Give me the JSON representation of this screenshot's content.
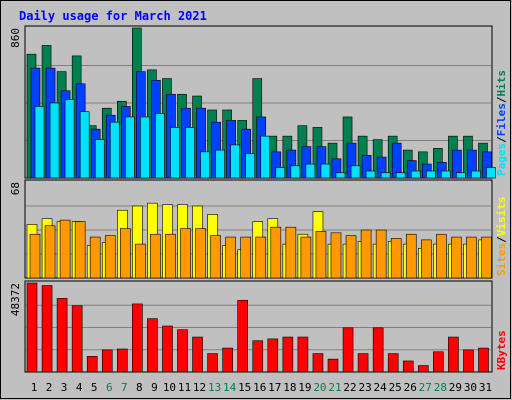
{
  "chart_data": {
    "type": "bar",
    "title": "Daily usage for March 2021",
    "colors": {
      "background": "#c0c0c0",
      "title": "#0000ff",
      "hits": "#007f4f",
      "files": "#0040ff",
      "pages": "#00e0ff",
      "visits": "#ffff00",
      "sites": "#ff9900",
      "kbytes": "#ff0000",
      "weekend": "#00804a",
      "weekday": "#000000"
    },
    "days": [
      1,
      2,
      3,
      4,
      5,
      6,
      7,
      8,
      9,
      10,
      11,
      12,
      13,
      14,
      15,
      16,
      17,
      18,
      19,
      20,
      21,
      22,
      23,
      24,
      25,
      26,
      27,
      28,
      29,
      30,
      31
    ],
    "weekend_days": [
      6,
      7,
      13,
      14,
      20,
      21,
      27,
      28
    ],
    "panels": [
      {
        "id": "hits-files-pages",
        "max_label": "860",
        "ymax": 860,
        "side_labels": [
          "Pages",
          "Files",
          "Hits"
        ],
        "series": [
          {
            "name": "Hits",
            "values": [
              710,
              760,
              610,
              700,
              300,
              400,
              440,
              860,
              620,
              570,
              480,
              470,
              390,
              390,
              330,
              570,
              240,
              240,
              300,
              290,
              200,
              350,
              240,
              220,
              240,
              160,
              150,
              170,
              240,
              240,
              200
            ]
          },
          {
            "name": "Files",
            "values": [
              630,
              630,
              500,
              540,
              280,
              360,
              410,
              610,
              560,
              480,
              400,
              400,
              320,
              330,
              280,
              350,
              150,
              160,
              180,
              180,
              110,
              200,
              130,
              120,
              200,
              100,
              80,
              90,
              160,
              160,
              150
            ]
          },
          {
            "name": "Pages",
            "values": [
              410,
              430,
              450,
              380,
              220,
              320,
              350,
              350,
              370,
              290,
              290,
              150,
              160,
              190,
              140,
              240,
              60,
              70,
              80,
              80,
              30,
              70,
              40,
              30,
              30,
              40,
              40,
              40,
              30,
              40,
              60
            ]
          }
        ]
      },
      {
        "id": "visits-sites",
        "max_label": "68",
        "ymax": 68,
        "side_labels": [
          "Sites",
          "Visits"
        ],
        "series": [
          {
            "name": "Visits",
            "values": [
              38,
              42,
              40,
              40,
              23,
              25,
              48,
              51,
              53,
              52,
              52,
              51,
              45,
              23,
              20,
              40,
              42,
              24,
              31,
              47,
              24,
              24,
              26,
              24,
              26,
              24,
              21,
              24,
              24,
              24,
              27
            ]
          },
          {
            "name": "Sites",
            "values": [
              31,
              37,
              41,
              40,
              29,
              30,
              35,
              24,
              31,
              31,
              35,
              35,
              30,
              29,
              29,
              29,
              36,
              36,
              29,
              33,
              32,
              30,
              34,
              34,
              28,
              31,
              27,
              31,
              29,
              29,
              29
            ]
          }
        ]
      },
      {
        "id": "kbytes",
        "max_label": "48372",
        "ymax": 48372,
        "side_labels": [
          "KBytes"
        ],
        "series": [
          {
            "name": "KBytes",
            "values": [
              48372,
              47000,
              40000,
              36000,
              8500,
              12000,
              12500,
              37000,
              29000,
              25000,
              23000,
              19000,
              10000,
              13000,
              39000,
              17000,
              18000,
              19000,
              19000,
              10000,
              7000,
              24000,
              10000,
              24000,
              10000,
              6000,
              3500,
              11000,
              19000,
              12000,
              13000
            ]
          }
        ]
      }
    ]
  }
}
